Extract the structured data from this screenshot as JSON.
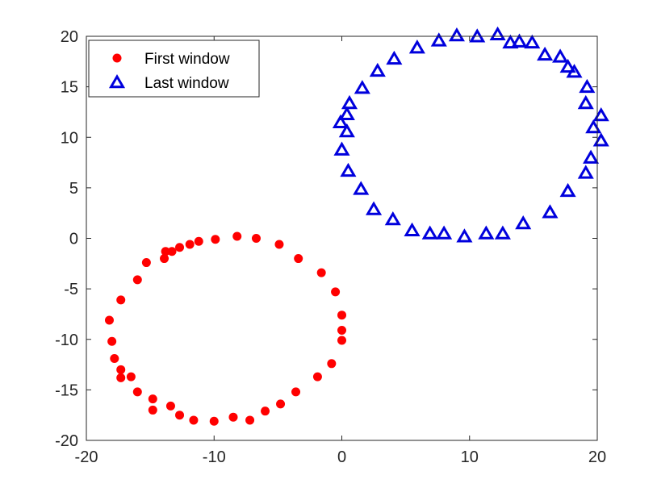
{
  "chart_data": {
    "type": "scatter",
    "xlim": [
      -20,
      20
    ],
    "ylim": [
      -20,
      20
    ],
    "xticks": [
      -20,
      -10,
      0,
      10,
      20
    ],
    "yticks": [
      -20,
      -15,
      -10,
      -5,
      0,
      5,
      10,
      15,
      20
    ],
    "xtick_labels": [
      "-20",
      "-10",
      "0",
      "10",
      "20"
    ],
    "ytick_labels": [
      "-20",
      "-15",
      "-10",
      "-5",
      "0",
      "5",
      "10",
      "15",
      "20"
    ],
    "grid": false,
    "legend": {
      "position": "top-left"
    },
    "series": [
      {
        "name": "First window",
        "marker": "circle",
        "color": "#ff0000",
        "points": [
          [
            -8.2,
            0.2
          ],
          [
            -6.7,
            0.0
          ],
          [
            -9.9,
            -0.1
          ],
          [
            -11.2,
            -0.3
          ],
          [
            -11.9,
            -0.6
          ],
          [
            -12.7,
            -0.9
          ],
          [
            -13.3,
            -1.3
          ],
          [
            -13.8,
            -1.3
          ],
          [
            -13.9,
            -2.0
          ],
          [
            -15.3,
            -2.4
          ],
          [
            -4.9,
            -0.6
          ],
          [
            -3.4,
            -2.0
          ],
          [
            -1.6,
            -3.4
          ],
          [
            -16.0,
            -4.1
          ],
          [
            -0.5,
            -5.3
          ],
          [
            -17.3,
            -6.1
          ],
          [
            0.0,
            -7.6
          ],
          [
            -18.2,
            -8.1
          ],
          [
            0.0,
            -9.1
          ],
          [
            -18.0,
            -10.2
          ],
          [
            0.0,
            -10.1
          ],
          [
            -17.8,
            -11.9
          ],
          [
            -0.8,
            -12.4
          ],
          [
            -17.3,
            -13.0
          ],
          [
            -1.9,
            -13.7
          ],
          [
            -16.5,
            -13.7
          ],
          [
            -17.3,
            -13.8
          ],
          [
            -16.0,
            -15.2
          ],
          [
            -3.6,
            -15.2
          ],
          [
            -14.8,
            -15.9
          ],
          [
            -13.4,
            -16.6
          ],
          [
            -4.8,
            -16.4
          ],
          [
            -14.8,
            -17.0
          ],
          [
            -6.0,
            -17.1
          ],
          [
            -12.7,
            -17.5
          ],
          [
            -11.6,
            -18.0
          ],
          [
            -8.5,
            -17.7
          ],
          [
            -7.2,
            -18.0
          ],
          [
            -10.0,
            -18.1
          ]
        ]
      },
      {
        "name": "Last window",
        "marker": "triangle-open",
        "color": "#0000dd",
        "points": [
          [
            9.0,
            20.0
          ],
          [
            10.6,
            19.9
          ],
          [
            12.2,
            20.1
          ],
          [
            13.2,
            19.3
          ],
          [
            13.9,
            19.4
          ],
          [
            14.9,
            19.3
          ],
          [
            7.6,
            19.5
          ],
          [
            5.9,
            18.8
          ],
          [
            15.9,
            18.1
          ],
          [
            17.1,
            17.9
          ],
          [
            4.1,
            17.7
          ],
          [
            17.7,
            16.9
          ],
          [
            18.2,
            16.4
          ],
          [
            2.8,
            16.5
          ],
          [
            1.6,
            14.8
          ],
          [
            19.2,
            14.9
          ],
          [
            19.1,
            13.3
          ],
          [
            0.6,
            13.3
          ],
          [
            0.4,
            12.2
          ],
          [
            20.3,
            12.1
          ],
          [
            -0.1,
            11.4
          ],
          [
            19.7,
            10.9
          ],
          [
            0.4,
            10.5
          ],
          [
            20.3,
            9.6
          ],
          [
            0.0,
            8.7
          ],
          [
            19.5,
            7.9
          ],
          [
            0.5,
            6.6
          ],
          [
            19.1,
            6.4
          ],
          [
            1.5,
            4.8
          ],
          [
            17.7,
            4.6
          ],
          [
            2.5,
            2.8
          ],
          [
            16.3,
            2.5
          ],
          [
            4.0,
            1.8
          ],
          [
            14.2,
            1.4
          ],
          [
            5.5,
            0.7
          ],
          [
            6.9,
            0.4
          ],
          [
            8.0,
            0.4
          ],
          [
            11.3,
            0.4
          ],
          [
            12.6,
            0.4
          ],
          [
            9.6,
            0.1
          ]
        ]
      }
    ]
  }
}
